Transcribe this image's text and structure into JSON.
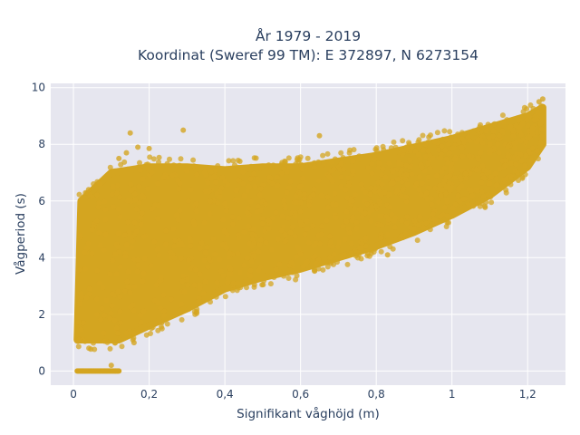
{
  "chart_data": {
    "type": "scatter",
    "title_line1": "År 1979 - 2019",
    "title_line2": "Koordinat (Sweref 99 TM): E 372897, N 6273154",
    "xlabel": "Signifikant våghöjd (m)",
    "ylabel": "Vågperiod (s)",
    "xlim": [
      -0.06,
      1.3
    ],
    "ylim": [
      -0.5,
      10.15
    ],
    "x_ticks": [
      0,
      0.2,
      0.4,
      0.6,
      0.8,
      1,
      1.2
    ],
    "x_tick_labels": [
      "0",
      "0,2",
      "0,4",
      "0,6",
      "0,8",
      "1",
      "1,2"
    ],
    "y_ticks": [
      0,
      2,
      4,
      6,
      8,
      10
    ],
    "y_tick_labels": [
      "0",
      "2",
      "4",
      "6",
      "8",
      "10"
    ],
    "grid": true,
    "marker_color": "#d4a520",
    "plot_background": "#e6e6ef",
    "zero_period_band": {
      "x_range": [
        0.01,
        0.12
      ],
      "y": 0
    },
    "main_cloud_upper_envelope": [
      {
        "x": 0.02,
        "y": 6.0
      },
      {
        "x": 0.1,
        "y": 7.0
      },
      {
        "x": 0.2,
        "y": 7.2
      },
      {
        "x": 0.3,
        "y": 7.2
      },
      {
        "x": 0.4,
        "y": 7.1
      },
      {
        "x": 0.5,
        "y": 7.2
      },
      {
        "x": 0.6,
        "y": 7.2
      },
      {
        "x": 0.7,
        "y": 7.4
      },
      {
        "x": 0.8,
        "y": 7.6
      },
      {
        "x": 0.9,
        "y": 7.9
      },
      {
        "x": 1.0,
        "y": 8.2
      },
      {
        "x": 1.1,
        "y": 8.6
      },
      {
        "x": 1.2,
        "y": 9.0
      },
      {
        "x": 1.24,
        "y": 9.3
      }
    ],
    "main_cloud_lower_envelope": [
      {
        "x": 0.01,
        "y": 1.1
      },
      {
        "x": 0.12,
        "y": 1.1
      },
      {
        "x": 0.2,
        "y": 1.6
      },
      {
        "x": 0.3,
        "y": 2.2
      },
      {
        "x": 0.4,
        "y": 2.9
      },
      {
        "x": 0.5,
        "y": 3.3
      },
      {
        "x": 0.6,
        "y": 3.6
      },
      {
        "x": 0.7,
        "y": 4.0
      },
      {
        "x": 0.8,
        "y": 4.4
      },
      {
        "x": 0.9,
        "y": 4.9
      },
      {
        "x": 1.0,
        "y": 5.5
      },
      {
        "x": 1.1,
        "y": 6.2
      },
      {
        "x": 1.2,
        "y": 7.2
      },
      {
        "x": 1.24,
        "y": 8.0
      }
    ],
    "outliers": [
      {
        "x": 0.15,
        "y": 8.4
      },
      {
        "x": 0.29,
        "y": 8.5
      },
      {
        "x": 0.17,
        "y": 7.9
      },
      {
        "x": 0.14,
        "y": 7.7
      },
      {
        "x": 0.12,
        "y": 7.5
      },
      {
        "x": 0.2,
        "y": 7.85
      },
      {
        "x": 0.65,
        "y": 8.3
      },
      {
        "x": 0.68,
        "y": 3.8
      },
      {
        "x": 0.83,
        "y": 4.1
      },
      {
        "x": 1.24,
        "y": 9.6
      },
      {
        "x": 1.23,
        "y": 9.5
      },
      {
        "x": 1.22,
        "y": 9.0
      },
      {
        "x": 0.93,
        "y": 8.0
      },
      {
        "x": 0.88,
        "y": 7.9
      },
      {
        "x": 0.04,
        "y": 6.4
      },
      {
        "x": 0.1,
        "y": 0.2
      },
      {
        "x": 0.16,
        "y": 1.0
      }
    ]
  }
}
